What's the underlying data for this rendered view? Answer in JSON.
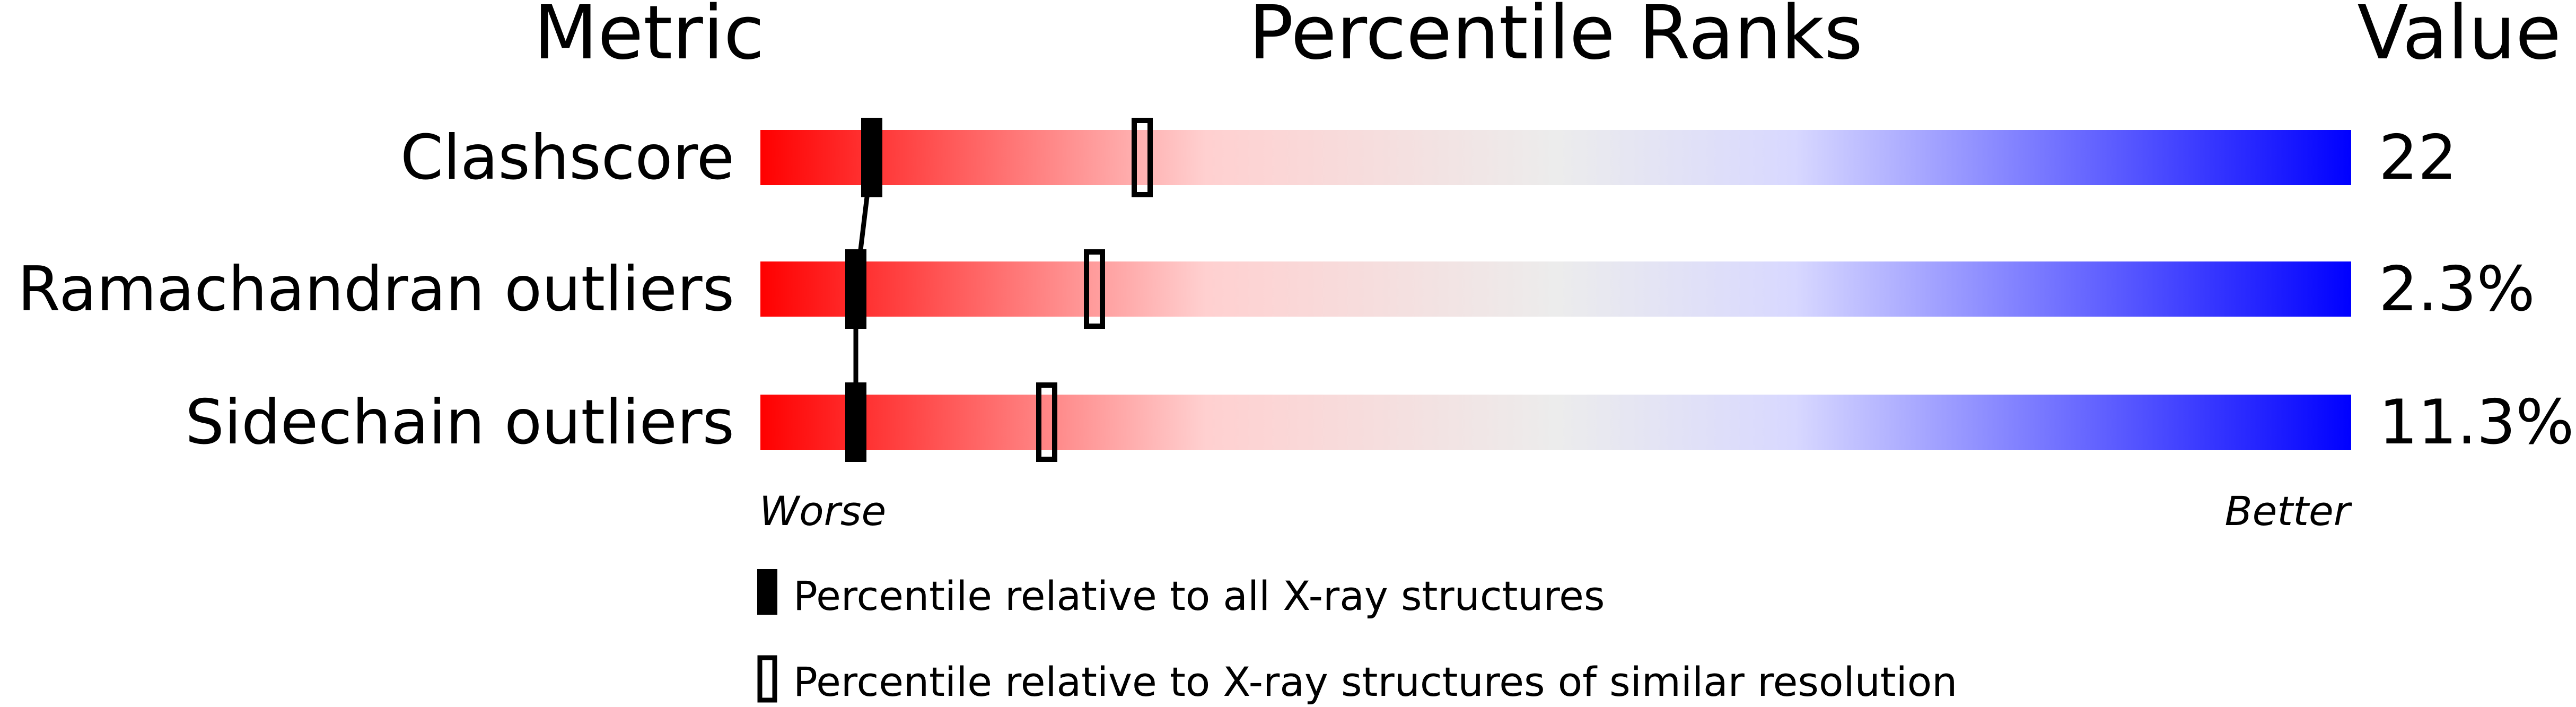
{
  "chart_data": {
    "type": "percentile-bar",
    "headers": {
      "metric": "Metric",
      "ranks": "Percentile Ranks",
      "value": "Value"
    },
    "xlim": [
      0,
      100
    ],
    "axis_labels": {
      "left": "Worse",
      "right": "Better"
    },
    "gradient_colors": [
      "#ff0000",
      "#ffd8d8",
      "#ececec",
      "#d8d8ff",
      "#0000ff"
    ],
    "rows": [
      {
        "metric": "Clashscore",
        "value": "22",
        "percentile_all": 7,
        "percentile_similar": 24
      },
      {
        "metric": "Ramachandran outliers",
        "value": "2.3%",
        "percentile_all": 6,
        "percentile_similar": 21
      },
      {
        "metric": "Sidechain outliers",
        "value": "11.3%",
        "percentile_all": 6,
        "percentile_similar": 18
      }
    ],
    "legend": [
      {
        "marker": "filled",
        "label": "Percentile relative to all X-ray structures"
      },
      {
        "marker": "open",
        "label": "Percentile relative to X-ray structures of similar resolution"
      }
    ]
  }
}
